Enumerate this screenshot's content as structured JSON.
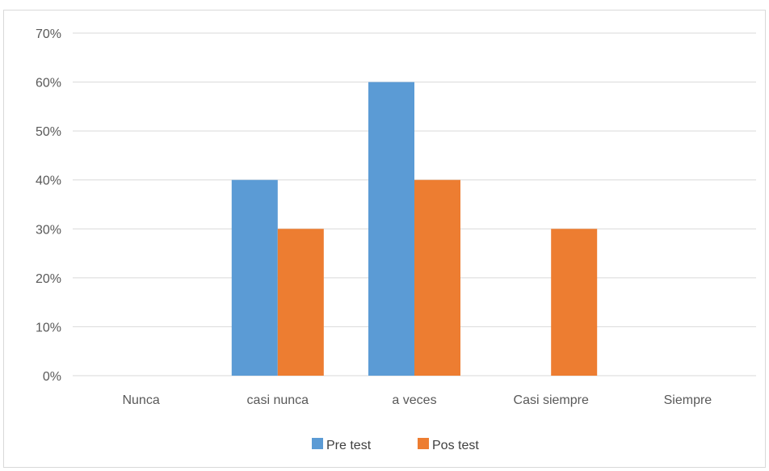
{
  "chart_data": {
    "type": "bar",
    "title": "",
    "xlabel": "",
    "ylabel": "",
    "categories": [
      "Nunca",
      "casi nunca",
      "a veces",
      "Casi siempre",
      "Siempre"
    ],
    "series": [
      {
        "name": "Pre test",
        "values": [
          0,
          40,
          60,
          0,
          0
        ],
        "color": "#5b9bd5"
      },
      {
        "name": "Pos test",
        "values": [
          0,
          30,
          40,
          30,
          0
        ],
        "color": "#ed7d31"
      }
    ],
    "ylim": [
      0,
      70
    ],
    "ytick_step": 10,
    "ytick_format": "percent",
    "grid": true,
    "legend_position": "bottom"
  }
}
